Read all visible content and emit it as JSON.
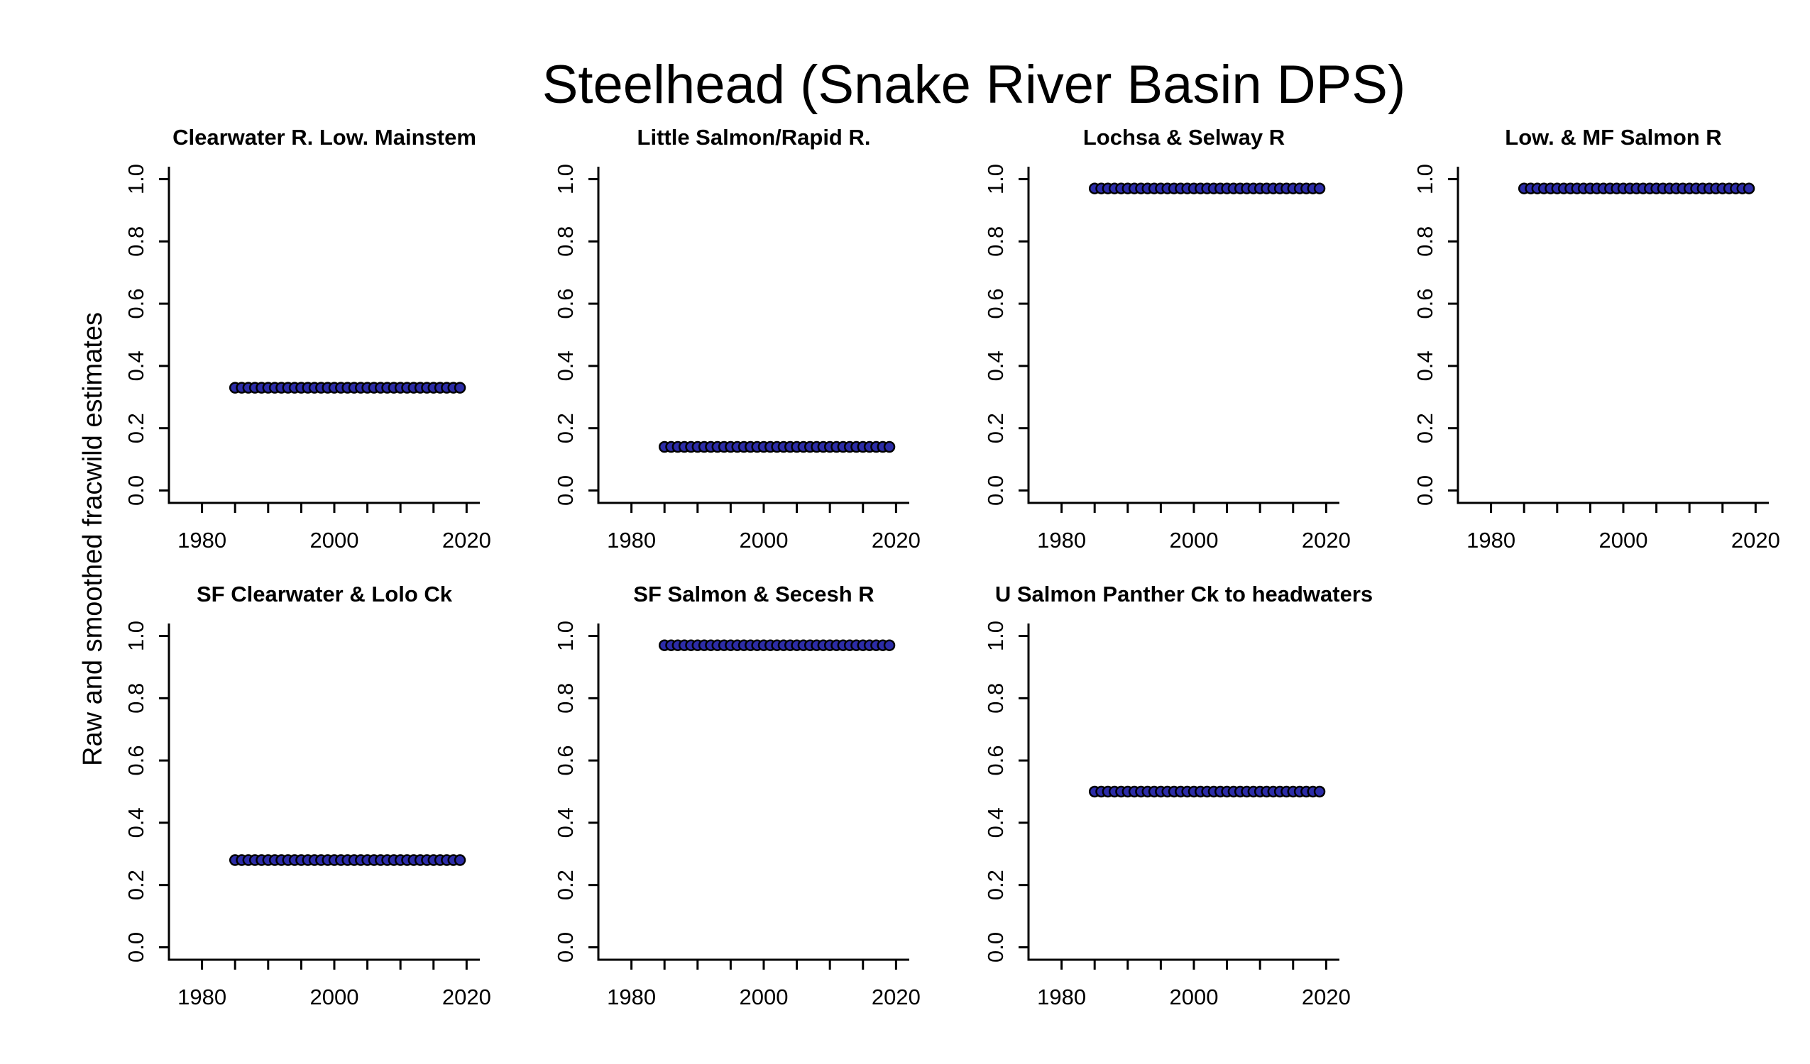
{
  "chart_data": {
    "type": "scatter",
    "title": "Steelhead (Snake River Basin DPS)",
    "ylabel": "Raw and smoothed fracwild estimates",
    "xlim": [
      1975,
      2022
    ],
    "ylim": [
      -0.04,
      1.04
    ],
    "xticks": [
      1980,
      2000,
      2020
    ],
    "yticks": [
      "0.0",
      "0.2",
      "0.4",
      "0.6",
      "0.8",
      "1.0"
    ],
    "point_fill": "#2c2ca8",
    "point_stroke": "#000000",
    "years": [
      1985,
      1986,
      1987,
      1988,
      1989,
      1990,
      1991,
      1992,
      1993,
      1994,
      1995,
      1996,
      1997,
      1998,
      1999,
      2000,
      2001,
      2002,
      2003,
      2004,
      2005,
      2006,
      2007,
      2008,
      2009,
      2010,
      2011,
      2012,
      2013,
      2014,
      2015,
      2016,
      2017,
      2018,
      2019
    ],
    "panels": [
      {
        "title": "Clearwater R. Low. Mainstem",
        "value": 0.33
      },
      {
        "title": "Little Salmon/Rapid R.",
        "value": 0.14
      },
      {
        "title": "Lochsa & Selway R",
        "value": 0.97
      },
      {
        "title": "Low. & MF Salmon R",
        "value": 0.97
      },
      {
        "title": "SF Clearwater & Lolo Ck",
        "value": 0.28
      },
      {
        "title": "SF Salmon & Secesh R",
        "value": 0.97
      },
      {
        "title": "U Salmon Panther Ck to headwaters",
        "value": 0.5
      }
    ]
  }
}
